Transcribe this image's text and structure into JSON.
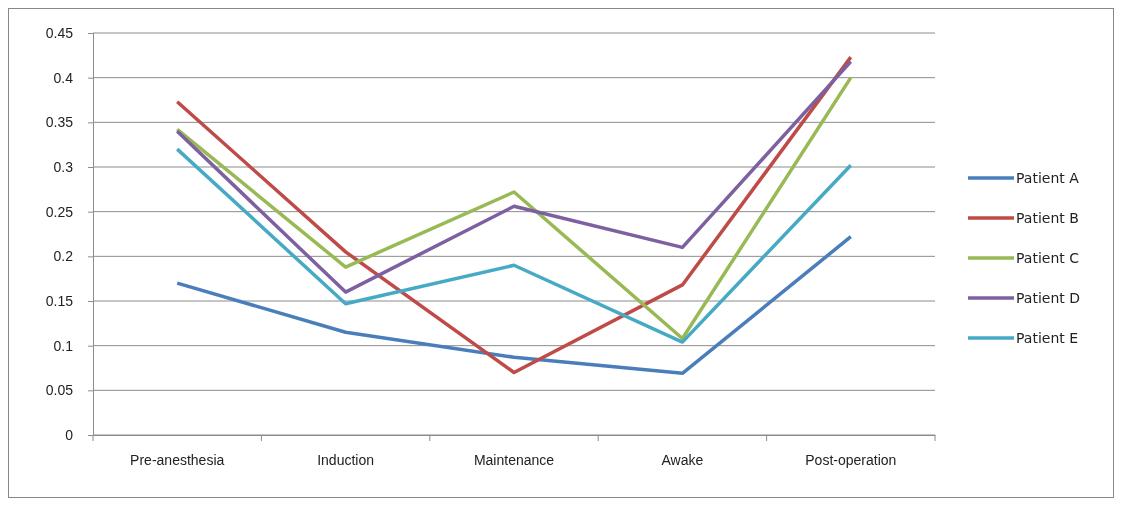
{
  "chart_data": {
    "type": "line",
    "categories": [
      "Pre-anesthesia",
      "Induction",
      "Maintenance",
      "Awake",
      "Post-operation"
    ],
    "series": [
      {
        "name": "Patient A",
        "color": "#4a7ebb",
        "values": [
          0.17,
          0.115,
          0.087,
          0.069,
          0.222
        ]
      },
      {
        "name": "Patient B",
        "color": "#be4b48",
        "values": [
          0.373,
          0.205,
          0.07,
          0.168,
          0.423
        ]
      },
      {
        "name": "Patient C",
        "color": "#98b954",
        "values": [
          0.342,
          0.188,
          0.272,
          0.108,
          0.4
        ]
      },
      {
        "name": "Patient D",
        "color": "#7d60a0",
        "values": [
          0.34,
          0.16,
          0.256,
          0.21,
          0.418
        ]
      },
      {
        "name": "Patient E",
        "color": "#46aac5",
        "values": [
          0.32,
          0.147,
          0.19,
          0.104,
          0.302
        ]
      }
    ],
    "ylim": [
      0,
      0.45
    ],
    "yticks": [
      0,
      0.05,
      0.1,
      0.15,
      0.2,
      0.25,
      0.3,
      0.35,
      0.4,
      0.45
    ],
    "grid": "y",
    "legend": "right",
    "marker": "none",
    "line_style": "solid"
  }
}
